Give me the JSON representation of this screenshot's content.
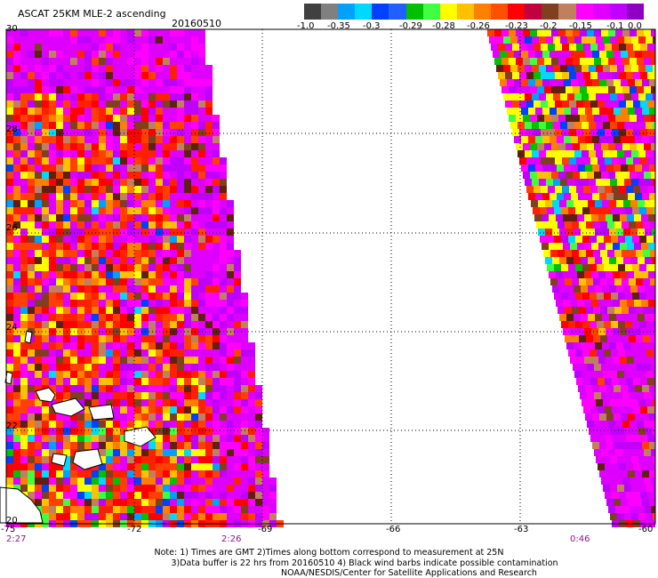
{
  "header": {
    "title": "ASCAT 25KM MLE-2 ascending",
    "date": "20160510"
  },
  "colorbar": {
    "colors": [
      "#404040",
      "#808080",
      "#00a0ff",
      "#00d8ff",
      "#0040ff",
      "#2060ff",
      "#00c000",
      "#40ff40",
      "#ffff00",
      "#ffc000",
      "#ff8000",
      "#ff5000",
      "#ff0000",
      "#c00040",
      "#804020",
      "#c08060",
      "#ff00ff",
      "#e000ff",
      "#c000ff",
      "#9000c0"
    ],
    "labels": [
      "-1.0",
      "-0.35",
      "-0.3",
      "-0.29",
      "-0.28",
      "-0.26",
      "-0.23",
      "-0.2",
      "-0.15",
      "-0.1",
      "0.0"
    ]
  },
  "axes": {
    "lat_labels": [
      "30",
      "28",
      "26",
      "24",
      "22",
      "20"
    ],
    "lon_labels": [
      "-75",
      "-72",
      "-69",
      "-66",
      "-63",
      "-60"
    ]
  },
  "times": [
    "2:27",
    "2:26",
    "0:46"
  ],
  "notes": [
    "Note: 1) Times are GMT 2)Times along bottom correspond to measurement at 25N",
    "3)Data buffer is 22 hrs from 20160510 4) Black wind barbs indicate possible contamination",
    "NOAA/NESDIS/Center for Satellite Applications and Research"
  ]
}
